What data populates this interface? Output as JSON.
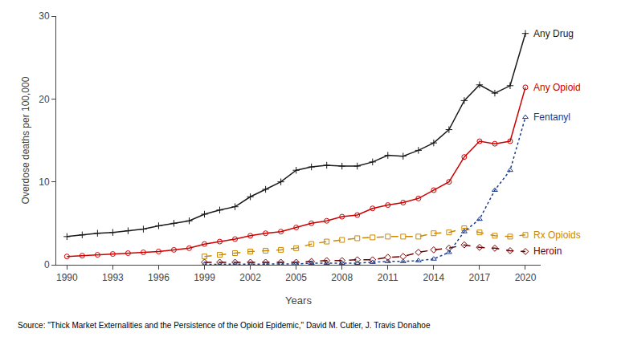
{
  "chart_data": {
    "type": "line",
    "x": [
      1990,
      1991,
      1992,
      1993,
      1994,
      1995,
      1996,
      1997,
      1998,
      1999,
      2000,
      2001,
      2002,
      2003,
      2004,
      2005,
      2006,
      2007,
      2008,
      2009,
      2010,
      2011,
      2012,
      2013,
      2014,
      2015,
      2016,
      2017,
      2018,
      2019,
      2020
    ],
    "series": [
      {
        "name": "Any Drug",
        "color": "#1a1a1a",
        "marker": "plus",
        "line_style": "solid",
        "values": [
          3.4,
          3.6,
          3.8,
          3.9,
          4.1,
          4.3,
          4.7,
          5.0,
          5.3,
          6.1,
          6.6,
          7.0,
          8.2,
          9.1,
          10.0,
          11.4,
          11.8,
          12.0,
          11.9,
          11.9,
          12.4,
          13.2,
          13.1,
          13.8,
          14.7,
          16.3,
          19.8,
          21.7,
          20.7,
          21.6,
          27.9
        ]
      },
      {
        "name": "Any Opioid",
        "color": "#cc0000",
        "marker": "circle",
        "line_style": "solid",
        "values": [
          1.0,
          1.1,
          1.2,
          1.3,
          1.4,
          1.5,
          1.6,
          1.8,
          2.0,
          2.5,
          2.8,
          3.1,
          3.5,
          3.8,
          4.0,
          4.5,
          5.0,
          5.3,
          5.8,
          6.0,
          6.8,
          7.2,
          7.5,
          8.0,
          9.0,
          10.0,
          13.0,
          14.9,
          14.6,
          14.9,
          21.4
        ]
      },
      {
        "name": "Rx Opioids",
        "color": "#cc8800",
        "marker": "square",
        "line_style": "dash",
        "values": [
          null,
          null,
          null,
          null,
          null,
          null,
          null,
          null,
          null,
          1.0,
          1.2,
          1.4,
          1.6,
          1.7,
          1.8,
          2.0,
          2.5,
          2.8,
          3.0,
          3.2,
          3.3,
          3.4,
          3.4,
          3.4,
          3.8,
          3.9,
          4.4,
          3.9,
          3.5,
          3.4,
          3.6
        ]
      },
      {
        "name": "Heroin",
        "color": "#6b0000",
        "marker": "diamond",
        "line_style": "dash",
        "values": [
          null,
          null,
          null,
          null,
          null,
          null,
          null,
          null,
          null,
          0.3,
          0.3,
          0.3,
          0.3,
          0.3,
          0.3,
          0.3,
          0.4,
          0.5,
          0.5,
          0.6,
          0.6,
          0.9,
          1.0,
          1.5,
          1.8,
          2.0,
          2.4,
          2.1,
          2.0,
          1.7,
          1.6
        ]
      },
      {
        "name": "Fentanyl",
        "color": "#1a3a8a",
        "marker": "triangle",
        "line_style": "dot",
        "values": [
          null,
          null,
          null,
          null,
          null,
          null,
          null,
          null,
          null,
          0.05,
          0.05,
          0.05,
          0.05,
          0.05,
          0.1,
          0.1,
          0.2,
          0.2,
          0.2,
          0.2,
          0.3,
          0.4,
          0.4,
          0.5,
          0.7,
          1.5,
          4.0,
          5.5,
          9.0,
          11.4,
          17.8
        ]
      }
    ],
    "xlabel": "Years",
    "ylabel": "Overdose deaths per 100,000",
    "xlim": [
      1989.3,
      2021.0
    ],
    "ylim": [
      0,
      30
    ],
    "xticks": [
      1990,
      1993,
      1996,
      1999,
      2002,
      2005,
      2008,
      2011,
      2014,
      2017,
      2020
    ],
    "yticks": [
      0,
      10,
      20,
      30
    ],
    "grid": false,
    "annotations": [
      "Source: \"Thick Market Externalities and the Persistence of the Opioid Epidemic,\" David M. Cutler, J. Travis Donahoe"
    ]
  }
}
